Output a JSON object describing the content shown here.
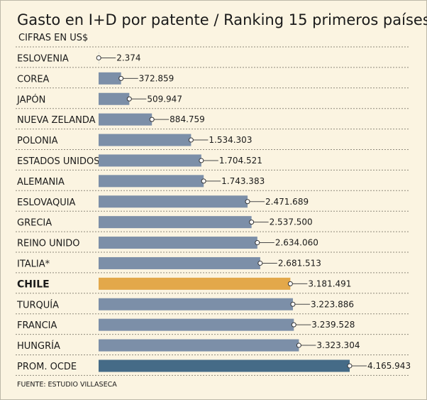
{
  "header": {
    "title": "Gasto en I+D por patente / Ranking 15 primeros países",
    "subtitle": "CIFRAS EN US$"
  },
  "footer": {
    "source": "FUENTE: ESTUDIO VILLASECA"
  },
  "colors": {
    "background": "#fbf4e1",
    "bar_default": "#7c8fa8",
    "bar_highlight": "#e3a84a",
    "bar_average": "#456b87",
    "divider": "#8f8a7c"
  },
  "chart_data": {
    "type": "bar",
    "orientation": "horizontal",
    "title": "Gasto en I+D por patente / Ranking 15 primeros países",
    "subtitle": "CIFRAS EN US$",
    "xlim": [
      0,
      4165943
    ],
    "grid": false,
    "categories": [
      "ESLOVENIA",
      "COREA",
      "JAPÓN",
      "NUEVA ZELANDA",
      "POLONIA",
      "ESTADOS UNIDOS",
      "ALEMANIA",
      "ESLOVAQUIA",
      "GRECIA",
      "REINO UNIDO",
      "ITALIA*",
      "CHILE",
      "TURQUÍA",
      "FRANCIA",
      "HUNGRÍA",
      "PROM. OCDE"
    ],
    "values": [
      2374,
      372859,
      509947,
      884759,
      1534303,
      1704521,
      1743383,
      2471689,
      2537500,
      2634060,
      2681513,
      3181491,
      3223886,
      3239528,
      3323304,
      4165943
    ],
    "value_labels": [
      "2.374",
      "372.859",
      "509.947",
      "884.759",
      "1.534.303",
      "1.704.521",
      "1.743.383",
      "2.471.689",
      "2.537.500",
      "2.634.060",
      "2.681.513",
      "3.181.491",
      "3.223.886",
      "3.239.528",
      "3.323.304",
      "4.165.943"
    ],
    "highlight": "CHILE",
    "average": "PROM. OCDE"
  }
}
